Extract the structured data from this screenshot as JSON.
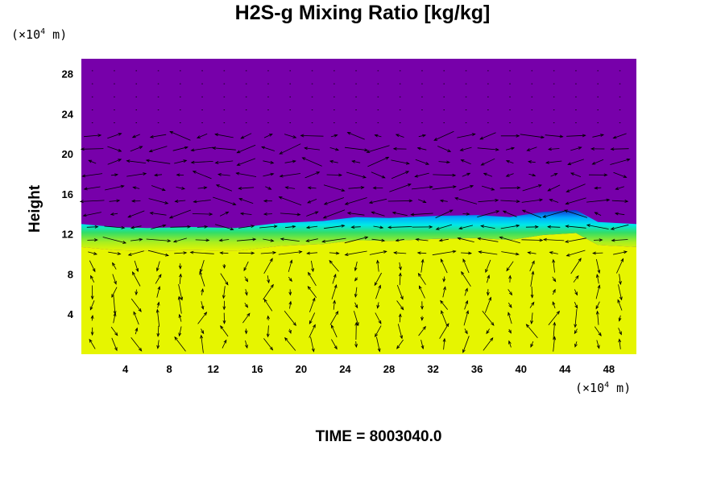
{
  "title": "H2S-g Mixing Ratio [kg/kg]",
  "time_label": "TIME = 8003040.0",
  "y_unit": {
    "prefix": "(×10",
    "exp": "4",
    "suffix": " m)"
  },
  "x_unit": {
    "prefix": "(×10",
    "exp": "4",
    "suffix": " m)"
  },
  "colors": {
    "upper_layer": "#7700aa",
    "lower_layer": "#e6f500",
    "interface_cyan": "#00d8ff",
    "interface_blue": "#1a4fe8",
    "interface_green": "#33dd66",
    "mixing_zone": "#b8ef20",
    "vectors": "#000000"
  },
  "chart_data": {
    "type": "heatmap",
    "title": "H2S-g Mixing Ratio [kg/kg]",
    "xlabel": "(×10^4 m)",
    "ylabel": "Height",
    "x_ticks": [
      4,
      8,
      12,
      16,
      20,
      24,
      28,
      32,
      36,
      40,
      44,
      48
    ],
    "y_ticks": [
      4,
      8,
      12,
      16,
      20,
      24,
      28
    ],
    "xlim": [
      0,
      50.5
    ],
    "ylim": [
      0,
      29.5
    ],
    "overlay": "velocity vectors",
    "interface_height": [
      {
        "x": 0,
        "y": 12.3
      },
      {
        "x": 3,
        "y": 12.0
      },
      {
        "x": 6,
        "y": 11.9
      },
      {
        "x": 10,
        "y": 12.0
      },
      {
        "x": 14,
        "y": 11.9
      },
      {
        "x": 18,
        "y": 12.4
      },
      {
        "x": 22,
        "y": 12.6
      },
      {
        "x": 25,
        "y": 13.0
      },
      {
        "x": 28,
        "y": 12.9
      },
      {
        "x": 32,
        "y": 13.1
      },
      {
        "x": 36,
        "y": 13.2
      },
      {
        "x": 39,
        "y": 13.0
      },
      {
        "x": 42,
        "y": 13.5
      },
      {
        "x": 45,
        "y": 13.7
      },
      {
        "x": 47,
        "y": 12.5
      },
      {
        "x": 50.5,
        "y": 12.3
      }
    ]
  }
}
